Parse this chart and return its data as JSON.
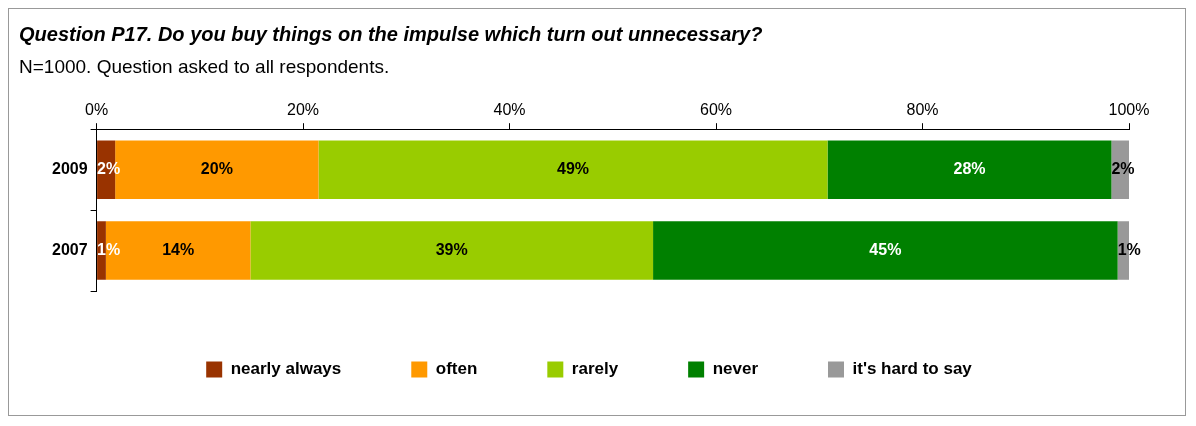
{
  "chart_data": {
    "type": "bar",
    "orientation": "horizontal",
    "stacked": true,
    "title": "Question P17. Do you buy things on the impulse which turn out unnecessary?",
    "subtitle": "N=1000. Question asked to all respondents.",
    "categories": [
      "2009",
      "2007"
    ],
    "series": [
      {
        "name": "nearly always",
        "color": "#993300",
        "values": [
          1.8,
          0.9
        ],
        "value_labels": [
          "2%",
          "1%"
        ]
      },
      {
        "name": "often",
        "color": "#ff9900",
        "values": [
          19.7,
          14.0
        ],
        "value_labels": [
          "20%",
          "14%"
        ]
      },
      {
        "name": "rarely",
        "color": "#99cc00",
        "values": [
          49.3,
          39.0
        ],
        "value_labels": [
          "49%",
          "39%"
        ]
      },
      {
        "name": "never",
        "color": "#008000",
        "values": [
          27.5,
          45.0
        ],
        "value_labels": [
          "28%",
          "45%"
        ]
      },
      {
        "name": "it's hard to say",
        "color": "#999999",
        "values": [
          1.7,
          1.1
        ],
        "value_labels": [
          "2%",
          "1%"
        ]
      }
    ],
    "xlim": [
      0,
      100
    ],
    "xticks": [
      {
        "value": 0,
        "label": "0%"
      },
      {
        "value": 20,
        "label": "20%"
      },
      {
        "value": 40,
        "label": "40%"
      },
      {
        "value": 60,
        "label": "60%"
      },
      {
        "value": 80,
        "label": "80%"
      },
      {
        "value": 100,
        "label": "100%"
      }
    ],
    "grid": false,
    "legend": "bottom"
  }
}
